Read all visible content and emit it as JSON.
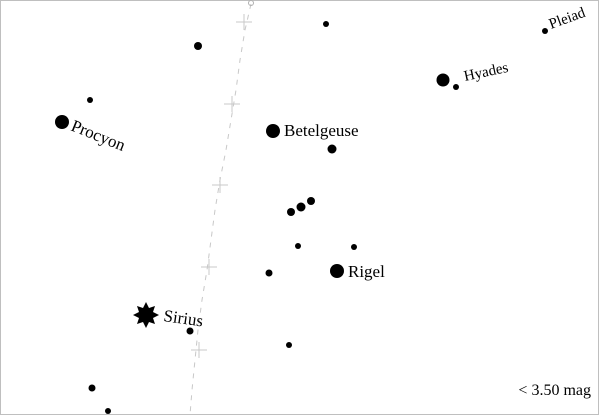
{
  "chart": {
    "type": "sky-map",
    "region": "Orion / Canis Major",
    "background_color": "#ffffff",
    "foreground_color": "#000000",
    "line_color": "#c8c8c8"
  },
  "labels": {
    "procyon": "Procyon",
    "betelgeuse": "Betelgeuse",
    "rigel": "Rigel",
    "sirius": "Sirius",
    "hyades": "Hyades",
    "pleiades": "Pleiad"
  },
  "legend": {
    "magnitude_limit": "< 3.50 mag"
  }
}
